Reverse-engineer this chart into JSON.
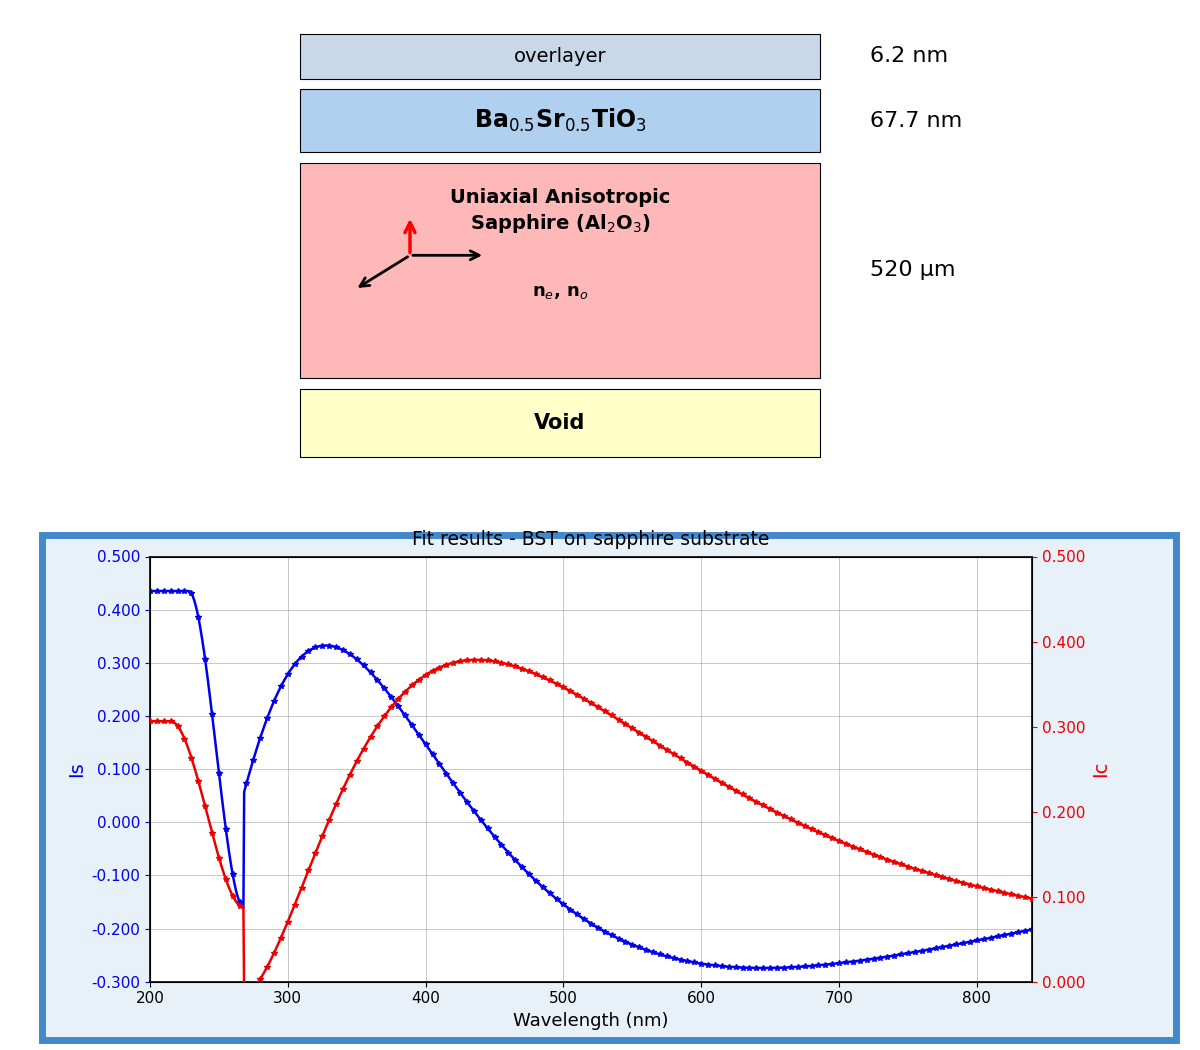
{
  "title": "Fit results - BST on sapphire substrate",
  "xlabel": "Wavelength (nm)",
  "ylabel_left": "Is",
  "ylabel_right": "Ic",
  "xlim": [
    200,
    840
  ],
  "ylim_left": [
    -0.3,
    0.5
  ],
  "ylim_right": [
    0.0,
    0.5
  ],
  "yticks_left": [
    -0.3,
    -0.2,
    -0.1,
    0.0,
    0.1,
    0.2,
    0.3,
    0.4,
    0.5
  ],
  "yticks_right": [
    0.0,
    0.1,
    0.2,
    0.3,
    0.4,
    0.5
  ],
  "xticks": [
    200,
    300,
    400,
    500,
    600,
    700,
    800
  ],
  "blue_color": "#0000EE",
  "red_color": "#EE0000",
  "layer_colors": {
    "overlayer": "#c8d8e8",
    "BST": "#b0d0f0",
    "sapphire": "#ffb8b8",
    "void": "#ffffc8"
  },
  "border_color": "#4488cc",
  "border_bg": "#e8f0f8"
}
